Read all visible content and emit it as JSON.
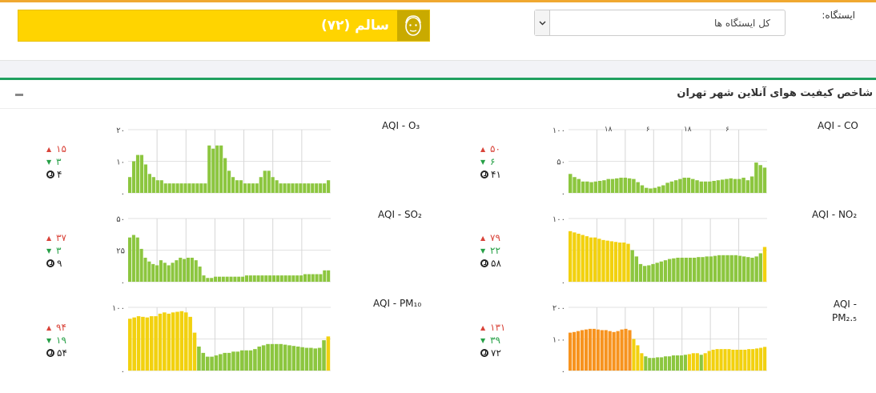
{
  "header": {
    "status_text": "سالم (۷۲)",
    "status_color": "#ffd400",
    "status_icon": "face-icon",
    "station_label": "ایستگاه:",
    "station_value": "کل ایستگاه ها"
  },
  "panel": {
    "title": "شاخص کیفیت هوای آنلاین شهر تهران",
    "collapse_icon": "minus-icon"
  },
  "colors": {
    "good": "#8cc63f",
    "moderate": "#f2d10f",
    "unhealthy_sensitive": "#f7931e"
  },
  "stats": [
    {
      "id": "co",
      "max": "۵۰",
      "min": "۶",
      "avg": "۴۱"
    },
    {
      "id": "o3",
      "max": "۱۵",
      "min": "۳",
      "avg": "۴"
    },
    {
      "id": "no2",
      "max": "۷۹",
      "min": "۲۲",
      "avg": "۵۸"
    },
    {
      "id": "so2",
      "max": "۳۷",
      "min": "۳",
      "avg": "۹"
    },
    {
      "id": "pm25",
      "max": "۱۳۱",
      "min": "۳۹",
      "avg": "۷۲"
    },
    {
      "id": "pm10",
      "max": "۹۴",
      "min": "۱۹",
      "avg": "۵۴"
    }
  ],
  "chart_data": [
    {
      "id": "co",
      "type": "bar",
      "title": "AQI - CO",
      "ylim": [
        0,
        100
      ],
      "ytick_labels": [
        "۰",
        "۵۰",
        "۱۰۰"
      ],
      "xtick_labels": [
        "۱۸",
        "۶",
        "۱۸",
        "۶"
      ],
      "values": [
        30,
        25,
        22,
        18,
        18,
        17,
        18,
        19,
        20,
        22,
        22,
        23,
        24,
        24,
        23,
        22,
        17,
        12,
        8,
        7,
        8,
        10,
        12,
        16,
        18,
        20,
        22,
        24,
        24,
        22,
        20,
        18,
        18,
        18,
        19,
        20,
        21,
        22,
        23,
        22,
        22,
        24,
        20,
        26,
        48,
        44,
        40
      ]
    },
    {
      "id": "o3",
      "type": "bar",
      "title": "AQI - O₃",
      "ylim": [
        0,
        20
      ],
      "ytick_labels": [
        "۰",
        "۱۰",
        "۲۰"
      ],
      "values": [
        5,
        10,
        12,
        12,
        9,
        6,
        5,
        4,
        4,
        3,
        3,
        3,
        3,
        3,
        3,
        3,
        3,
        3,
        3,
        3,
        15,
        14,
        15,
        15,
        11,
        7,
        5,
        4,
        4,
        3,
        3,
        3,
        3,
        5,
        7,
        7,
        5,
        4,
        3,
        3,
        3,
        3,
        3,
        3,
        3,
        3,
        3,
        3,
        3,
        3,
        4
      ]
    },
    {
      "id": "no2",
      "type": "bar",
      "title": "AQI - NO₂",
      "ylim": [
        0,
        100
      ],
      "ytick_labels": [
        "۰",
        "۱۰۰"
      ],
      "values": [
        80,
        78,
        76,
        74,
        72,
        70,
        70,
        68,
        66,
        65,
        64,
        63,
        62,
        62,
        60,
        50,
        40,
        28,
        25,
        26,
        28,
        30,
        32,
        34,
        36,
        37,
        38,
        38,
        38,
        38,
        38,
        39,
        39,
        40,
        40,
        41,
        42,
        42,
        42,
        42,
        42,
        41,
        40,
        39,
        38,
        40,
        45,
        55
      ]
    },
    {
      "id": "so2",
      "type": "bar",
      "title": "AQI - SO₂",
      "ylim": [
        0,
        50
      ],
      "ytick_labels": [
        "۰",
        "۲۵",
        "۵۰"
      ],
      "values": [
        35,
        37,
        35,
        26,
        19,
        16,
        14,
        13,
        17,
        15,
        13,
        15,
        17,
        19,
        18,
        19,
        19,
        17,
        12,
        5,
        3,
        3,
        4,
        4,
        4,
        4,
        4,
        4,
        4,
        4,
        5,
        5,
        5,
        5,
        5,
        5,
        5,
        5,
        5,
        5,
        5,
        5,
        5,
        5,
        5,
        6,
        6,
        6,
        6,
        6,
        9,
        9
      ]
    },
    {
      "id": "pm25",
      "type": "bar",
      "title": "AQI - PM₂.₅",
      "ylim": [
        0,
        200
      ],
      "ytick_labels": [
        "۰",
        "۱۰۰",
        "۲۰۰"
      ],
      "values": [
        120,
        122,
        125,
        128,
        130,
        132,
        132,
        130,
        128,
        128,
        125,
        122,
        125,
        130,
        132,
        128,
        100,
        80,
        55,
        45,
        40,
        40,
        42,
        42,
        45,
        45,
        48,
        48,
        48,
        50,
        52,
        55,
        55,
        50,
        55,
        62,
        66,
        68,
        68,
        68,
        68,
        66,
        66,
        66,
        66,
        68,
        68,
        70,
        72,
        75
      ]
    },
    {
      "id": "pm10",
      "type": "bar",
      "title": "AQI - PM₁₀",
      "ylim": [
        0,
        100
      ],
      "ytick_labels": [
        "۰",
        "۱۰۰"
      ],
      "values": [
        82,
        84,
        86,
        85,
        84,
        86,
        86,
        90,
        92,
        90,
        92,
        93,
        94,
        92,
        85,
        60,
        38,
        28,
        22,
        22,
        24,
        26,
        28,
        28,
        30,
        30,
        32,
        32,
        32,
        34,
        38,
        40,
        42,
        42,
        42,
        42,
        41,
        40,
        39,
        38,
        37,
        36,
        36,
        35,
        36,
        48,
        54
      ]
    }
  ]
}
